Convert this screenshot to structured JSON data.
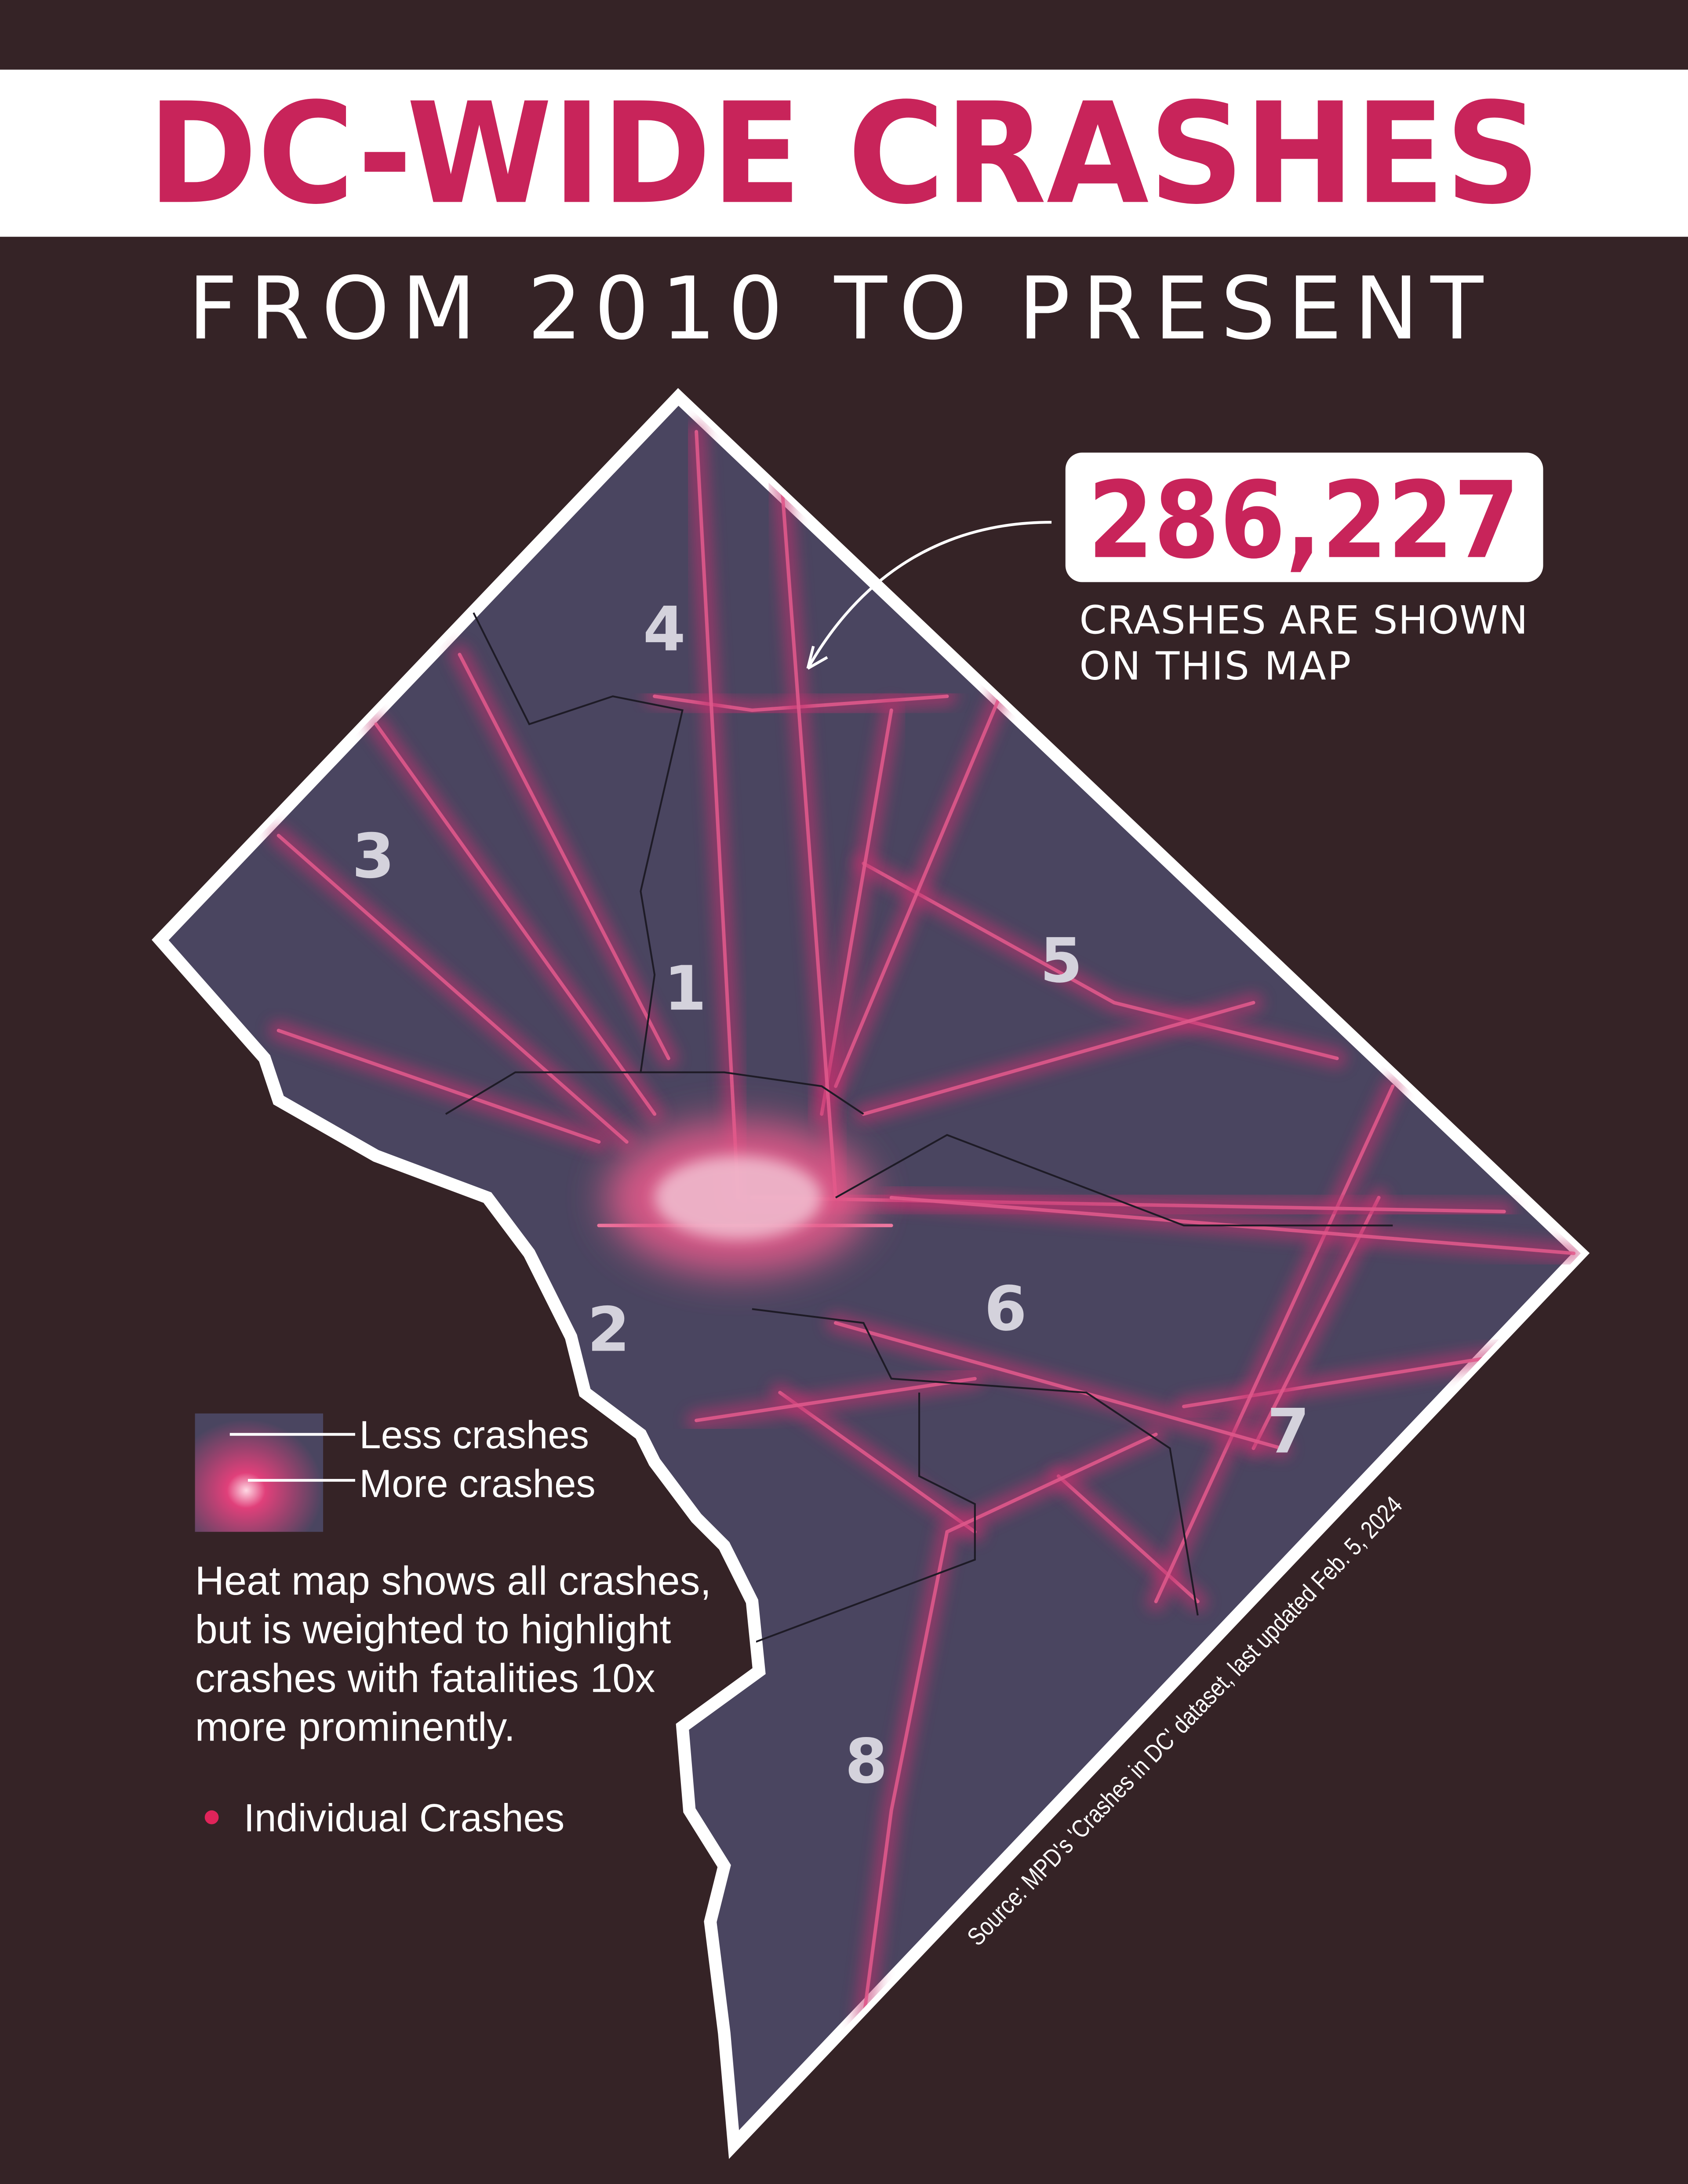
{
  "header": {
    "title": "DC-WIDE CRASHES",
    "subtitle": "FROM 2010 TO PRESENT"
  },
  "callout": {
    "count": "286,227",
    "caption": [
      "CRASHES ARE SHOWN",
      "ON THIS MAP"
    ]
  },
  "map": {
    "wards": [
      "4",
      "3",
      "1",
      "5",
      "2",
      "6",
      "7",
      "8"
    ]
  },
  "legend": {
    "less": "Less crashes",
    "more": "More crashes",
    "note": [
      "Heat map shows all crashes,",
      "but is weighted to highlight",
      "crashes with fatalities 10x",
      "more prominently."
    ],
    "dot_label": "Individual Crashes"
  },
  "source": "Source: MPD's 'Crashes in DC' dataset, last updated Feb. 5, 2024"
}
